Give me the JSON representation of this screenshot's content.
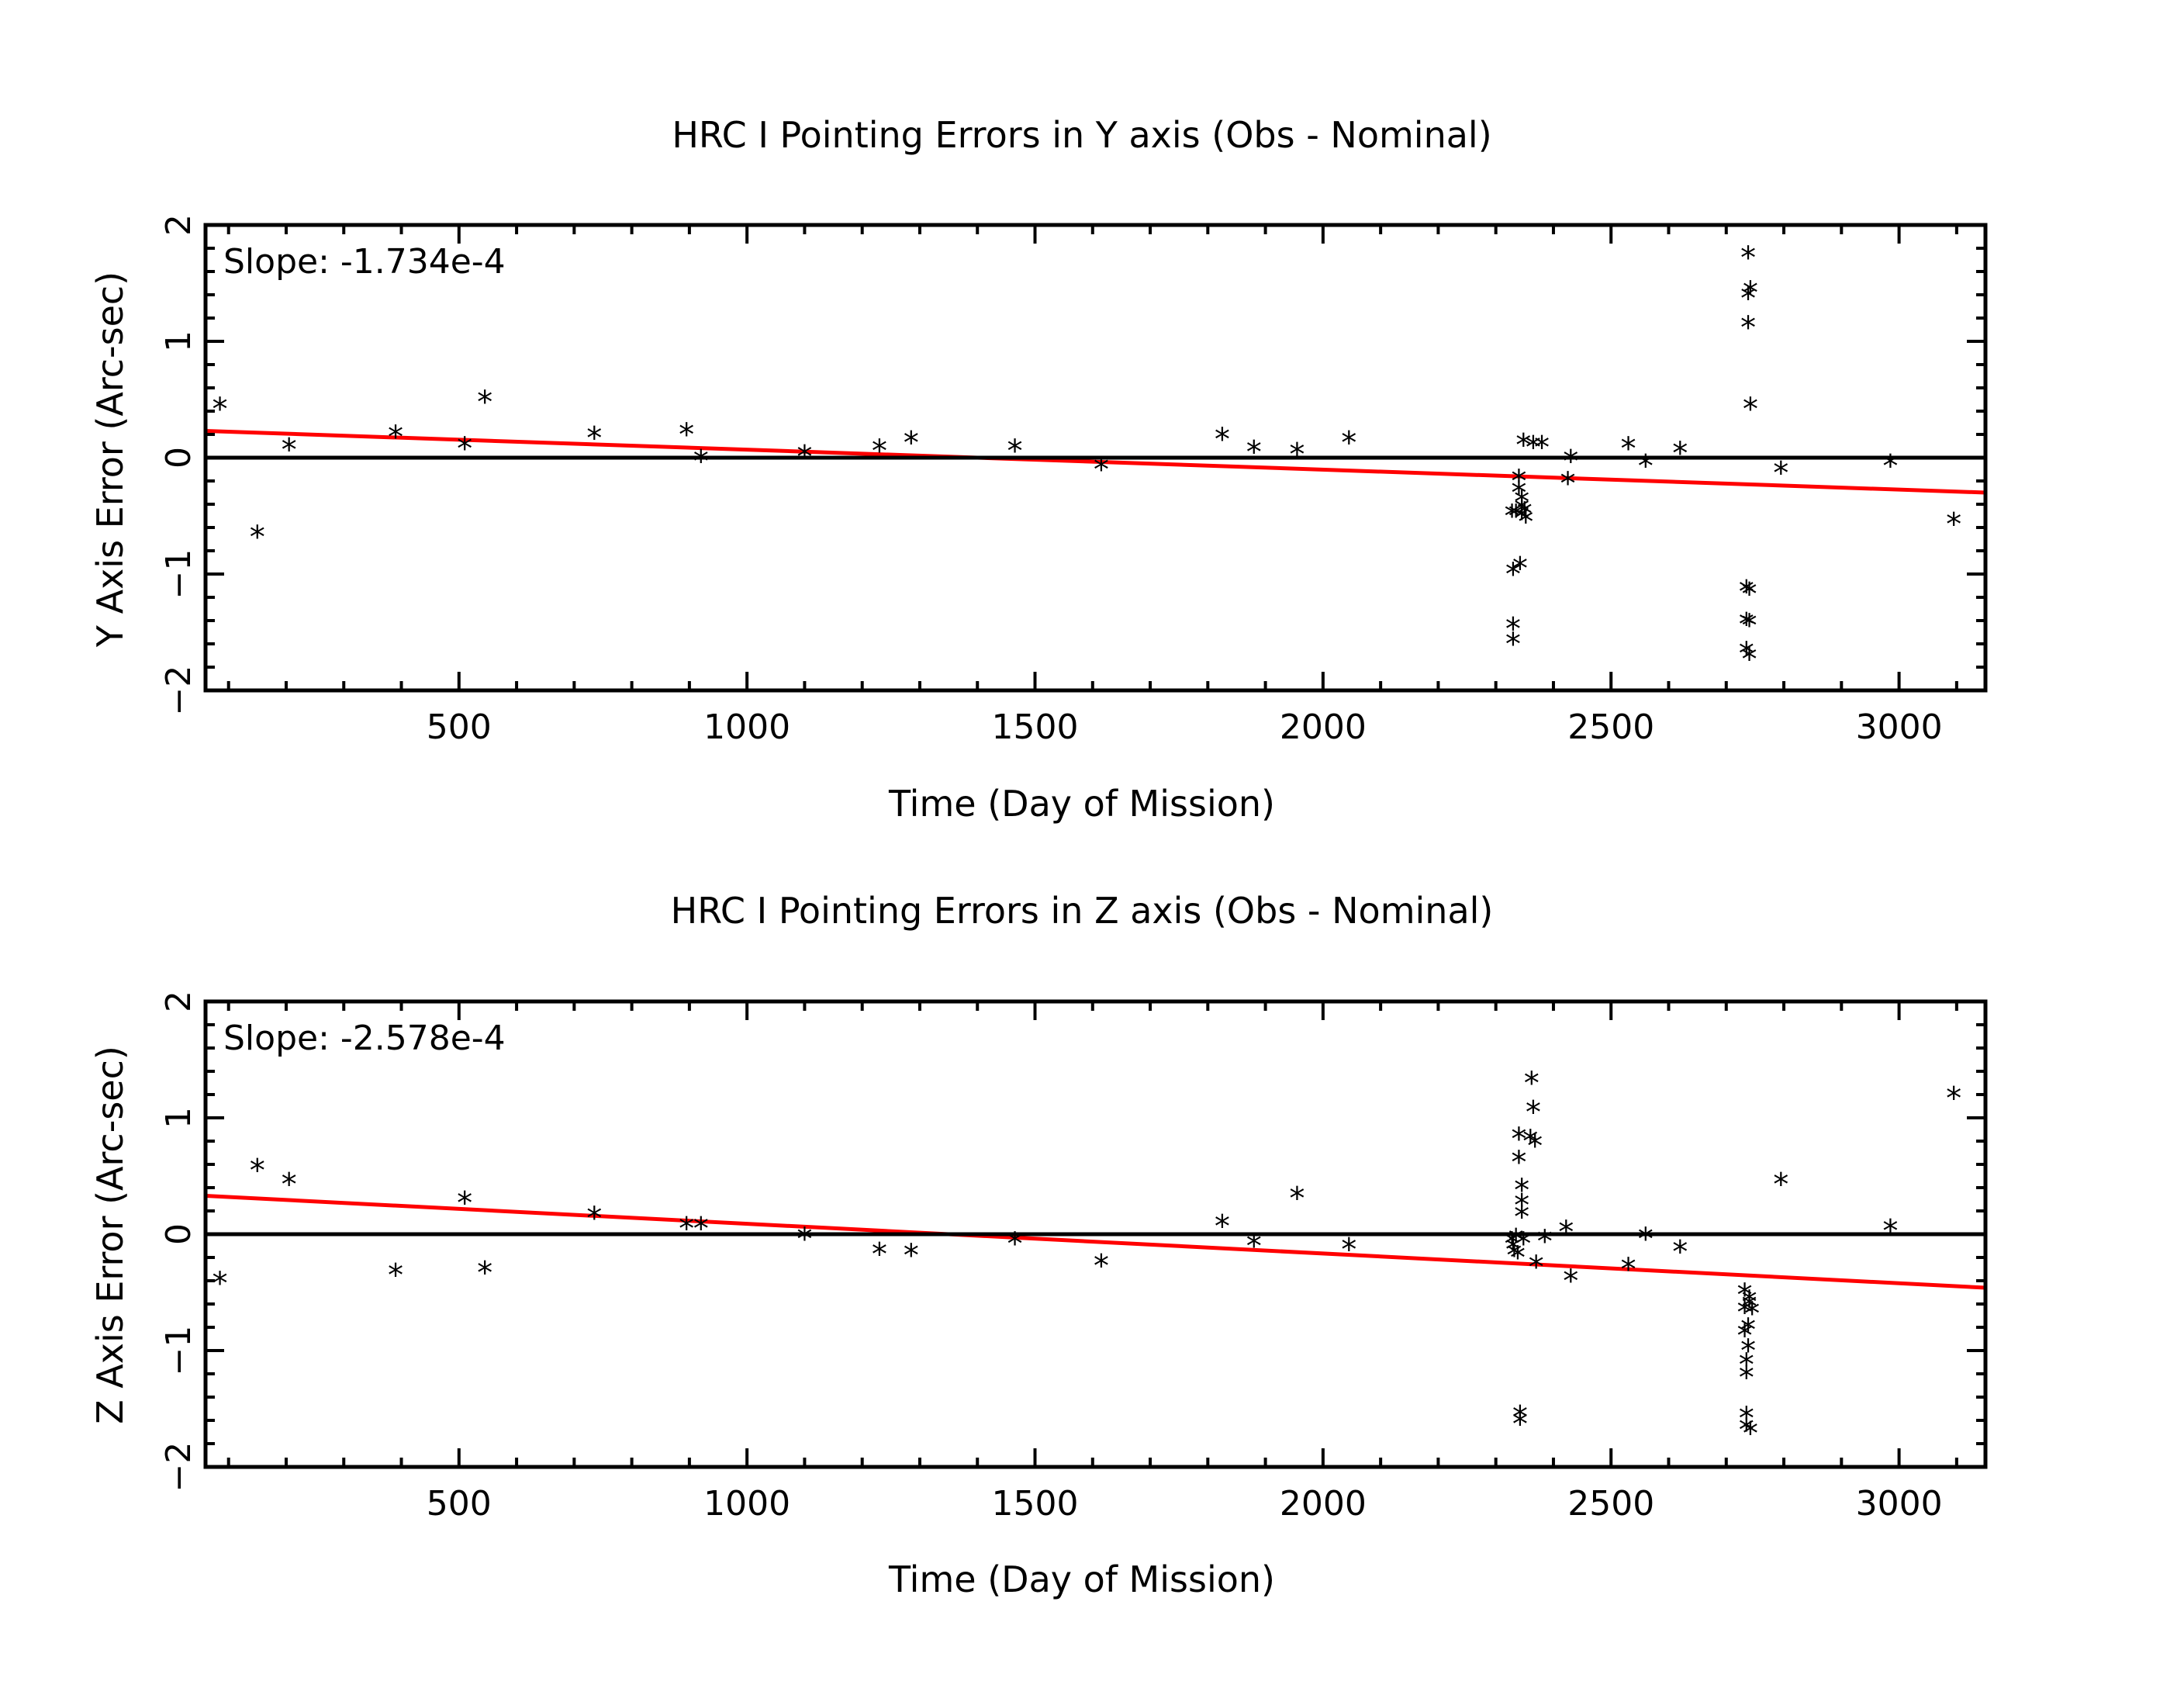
{
  "colors": {
    "fit_line": "#ff0000",
    "axes": "#000000",
    "points": "#000000",
    "background": "#ffffff"
  },
  "marker_glyph": "*",
  "chart_data": [
    {
      "type": "scatter",
      "title": "HRC I Pointing Errors in Y axis (Obs - Nominal)",
      "xlabel": "Time (Day of Mission)",
      "ylabel": "Y Axis Error (Arc-sec)",
      "xlim": [
        60,
        3150
      ],
      "ylim": [
        -2,
        2
      ],
      "xticks": [
        500,
        1000,
        1500,
        2000,
        2500,
        3000
      ],
      "xtick_labels": [
        "500",
        "1000",
        "1500",
        "2000",
        "2500",
        "3000"
      ],
      "yticks": [
        -2,
        -1,
        0,
        1,
        2
      ],
      "ytick_labels": [
        "-2",
        "-1",
        "0",
        "1",
        "2"
      ],
      "slope_label": "Slope: -1.734e-4",
      "fit_line": {
        "x": [
          60,
          3150
        ],
        "y": [
          0.23,
          -0.3
        ]
      },
      "zero_line": 0,
      "points": [
        [
          85,
          0.42
        ],
        [
          150,
          -0.68
        ],
        [
          205,
          0.07
        ],
        [
          390,
          0.18
        ],
        [
          510,
          0.08
        ],
        [
          545,
          0.48
        ],
        [
          735,
          0.17
        ],
        [
          895,
          0.2
        ],
        [
          920,
          -0.03
        ],
        [
          1100,
          0.01
        ],
        [
          1230,
          0.06
        ],
        [
          1285,
          0.13
        ],
        [
          1465,
          0.06
        ],
        [
          1615,
          -0.1
        ],
        [
          1825,
          0.16
        ],
        [
          1880,
          0.05
        ],
        [
          1955,
          0.03
        ],
        [
          2045,
          0.13
        ],
        [
          2328,
          -0.5
        ],
        [
          2330,
          -1.0
        ],
        [
          2330,
          -1.47
        ],
        [
          2330,
          -1.6
        ],
        [
          2335,
          -0.5
        ],
        [
          2340,
          -0.2
        ],
        [
          2340,
          -0.3
        ],
        [
          2342,
          -0.95
        ],
        [
          2345,
          -0.45
        ],
        [
          2345,
          -0.52
        ],
        [
          2345,
          -0.38
        ],
        [
          2348,
          0.11
        ],
        [
          2350,
          -0.48
        ],
        [
          2352,
          -0.55
        ],
        [
          2365,
          0.09
        ],
        [
          2380,
          0.09
        ],
        [
          2425,
          -0.22
        ],
        [
          2430,
          -0.03
        ],
        [
          2530,
          0.08
        ],
        [
          2560,
          -0.07
        ],
        [
          2620,
          0.04
        ],
        [
          2735,
          -1.15
        ],
        [
          2735,
          -1.43
        ],
        [
          2735,
          -1.68
        ],
        [
          2738,
          1.12
        ],
        [
          2738,
          1.37
        ],
        [
          2738,
          1.72
        ],
        [
          2740,
          -1.73
        ],
        [
          2740,
          -1.44
        ],
        [
          2740,
          -1.17
        ],
        [
          2742,
          1.42
        ],
        [
          2742,
          0.42
        ],
        [
          2795,
          -0.13
        ],
        [
          2985,
          -0.07
        ],
        [
          3095,
          -0.57
        ]
      ]
    },
    {
      "type": "scatter",
      "title": "HRC I Pointing Errors in  Z axis (Obs - Nominal)",
      "xlabel": "Time (Day of Mission)",
      "ylabel": "Z Axis Error (Arc-sec)",
      "xlim": [
        60,
        3150
      ],
      "ylim": [
        -2,
        2
      ],
      "xticks": [
        500,
        1000,
        1500,
        2000,
        2500,
        3000
      ],
      "xtick_labels": [
        "500",
        "1000",
        "1500",
        "2000",
        "2500",
        "3000"
      ],
      "yticks": [
        -2,
        -1,
        0,
        1,
        2
      ],
      "ytick_labels": [
        "-2",
        "-1",
        "0",
        "1",
        "2"
      ],
      "slope_label": "Slope: -2.578e-4",
      "fit_line": {
        "x": [
          60,
          3150
        ],
        "y": [
          0.33,
          -0.46
        ]
      },
      "zero_line": 0,
      "points": [
        [
          85,
          -0.42
        ],
        [
          150,
          0.55
        ],
        [
          205,
          0.43
        ],
        [
          390,
          -0.35
        ],
        [
          510,
          0.27
        ],
        [
          545,
          -0.33
        ],
        [
          735,
          0.14
        ],
        [
          895,
          0.05
        ],
        [
          920,
          0.05
        ],
        [
          1100,
          -0.04
        ],
        [
          1230,
          -0.17
        ],
        [
          1285,
          -0.18
        ],
        [
          1465,
          -0.08
        ],
        [
          1615,
          -0.27
        ],
        [
          1825,
          0.07
        ],
        [
          1880,
          -0.1
        ],
        [
          1955,
          0.31
        ],
        [
          2045,
          -0.13
        ],
        [
          2328,
          -0.08
        ],
        [
          2330,
          -0.13
        ],
        [
          2332,
          -0.18
        ],
        [
          2335,
          -0.05
        ],
        [
          2338,
          -0.2
        ],
        [
          2340,
          0.82
        ],
        [
          2340,
          0.62
        ],
        [
          2342,
          -1.57
        ],
        [
          2342,
          -1.63
        ],
        [
          2345,
          0.38
        ],
        [
          2345,
          0.25
        ],
        [
          2345,
          0.15
        ],
        [
          2348,
          -0.08
        ],
        [
          2360,
          0.8
        ],
        [
          2362,
          1.3
        ],
        [
          2365,
          1.05
        ],
        [
          2368,
          0.76
        ],
        [
          2370,
          -0.28
        ],
        [
          2385,
          -0.06
        ],
        [
          2422,
          0.02
        ],
        [
          2430,
          -0.4
        ],
        [
          2530,
          -0.3
        ],
        [
          2560,
          -0.04
        ],
        [
          2620,
          -0.15
        ],
        [
          2732,
          -0.52
        ],
        [
          2732,
          -0.67
        ],
        [
          2732,
          -0.87
        ],
        [
          2735,
          -1.12
        ],
        [
          2735,
          -1.23
        ],
        [
          2735,
          -1.58
        ],
        [
          2735,
          -1.68
        ],
        [
          2738,
          -0.82
        ],
        [
          2738,
          -1.0
        ],
        [
          2740,
          -0.62
        ],
        [
          2740,
          -0.58
        ],
        [
          2742,
          -1.71
        ],
        [
          2745,
          -0.68
        ],
        [
          2795,
          0.43
        ],
        [
          2985,
          0.03
        ],
        [
          3095,
          1.17
        ]
      ]
    }
  ]
}
